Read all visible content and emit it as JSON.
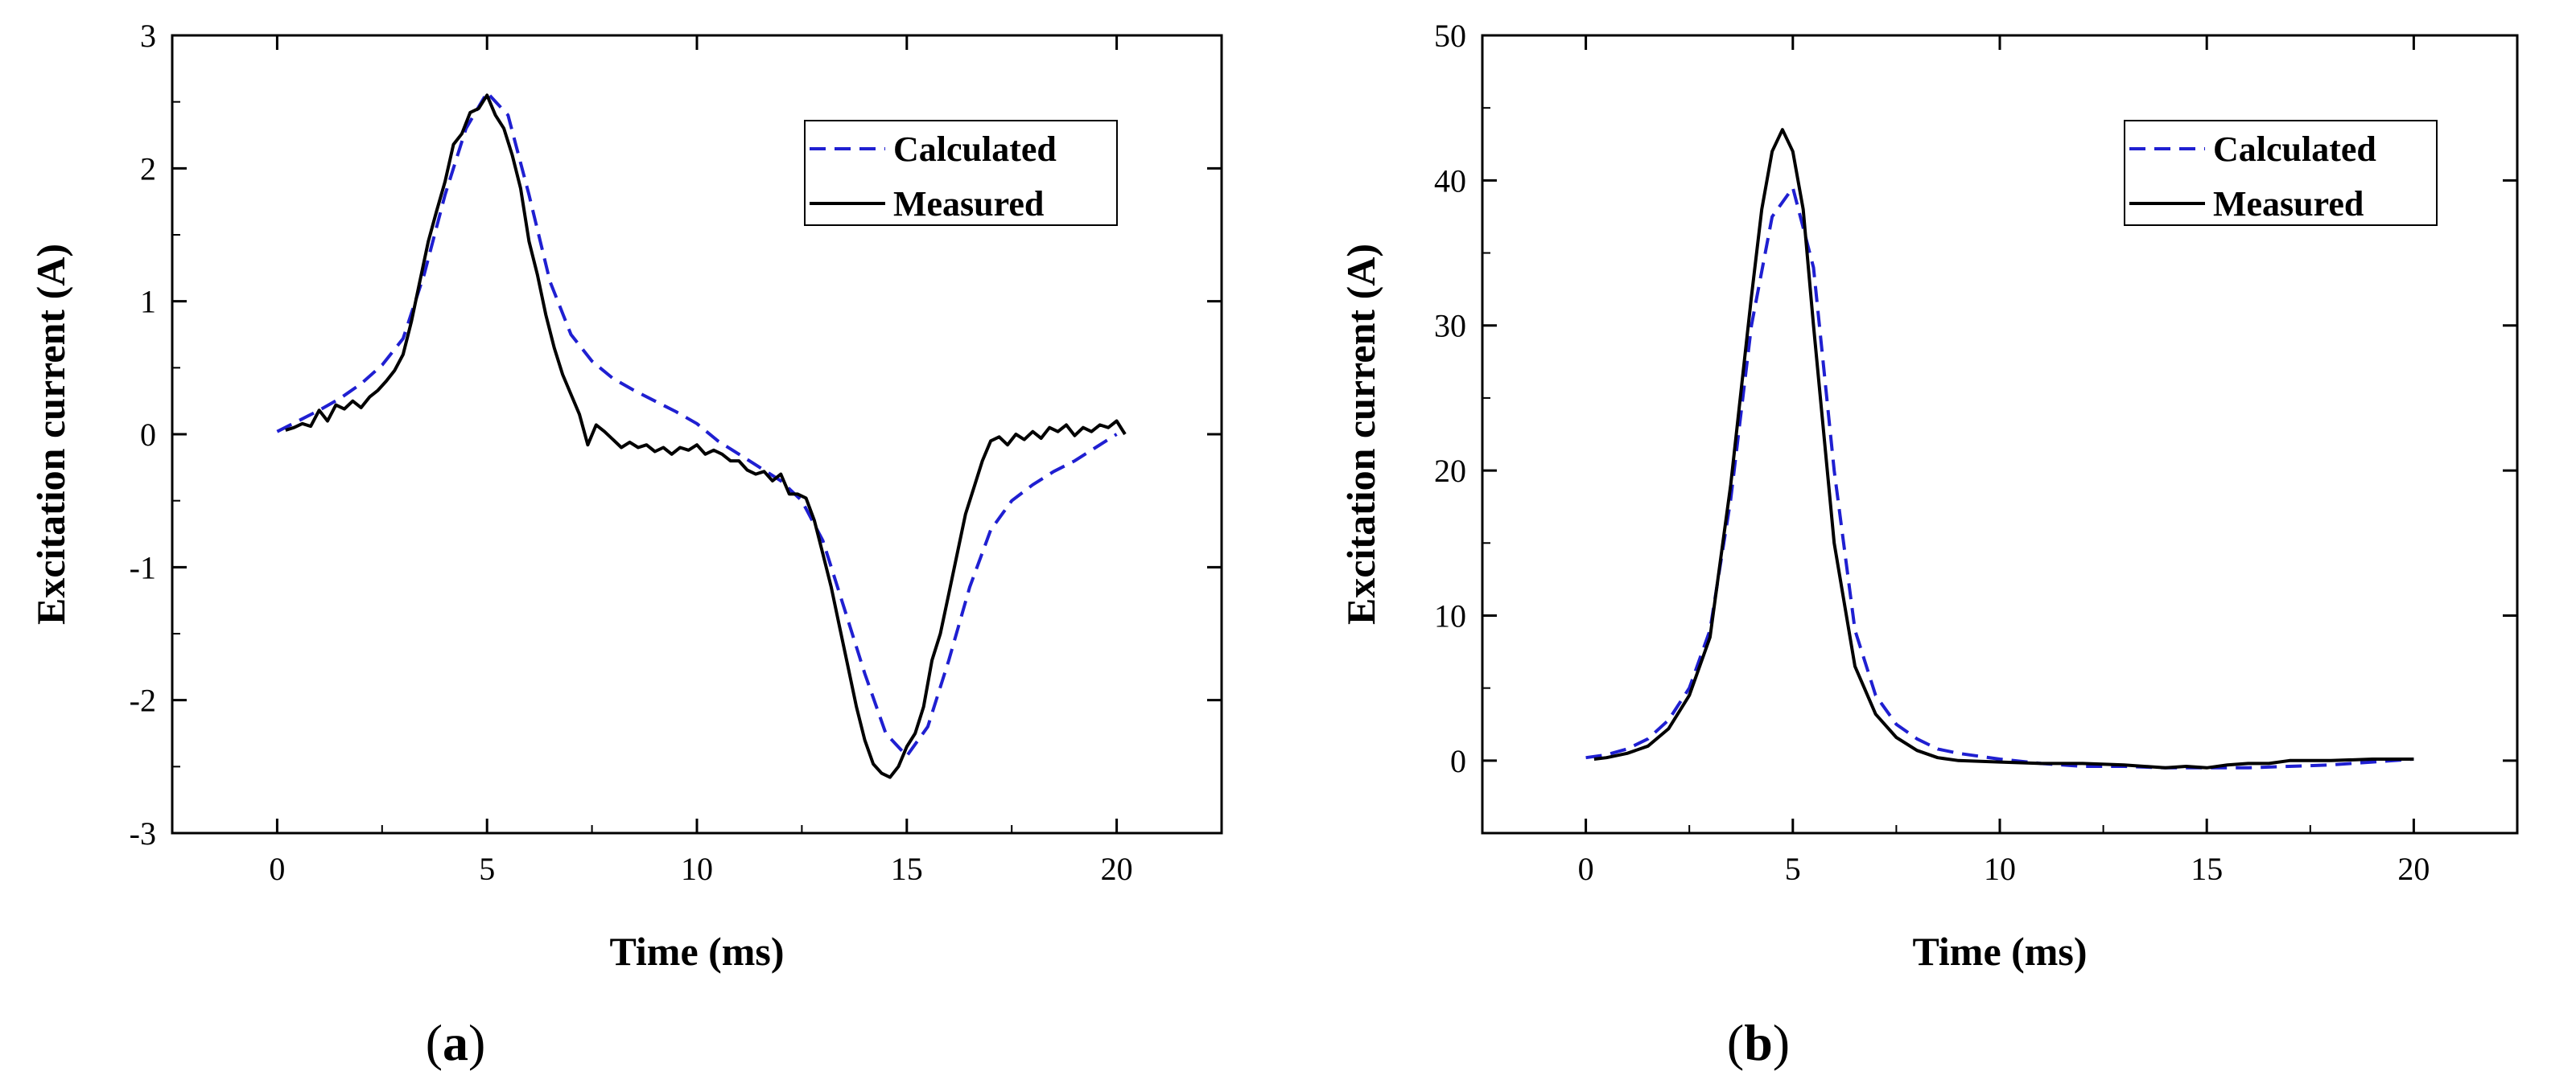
{
  "chart_data": [
    {
      "type": "line",
      "panel_label": "a",
      "xlabel": "Time (ms)",
      "ylabel": "Excitation current (A)",
      "xlim": [
        -2.5,
        22.5
      ],
      "ylim": [
        -3,
        3
      ],
      "xticks": [
        0,
        5,
        10,
        15,
        20
      ],
      "yticks": [
        -3,
        -2,
        -1,
        0,
        1,
        2,
        3
      ],
      "legend_position": "top-right",
      "series": [
        {
          "name": "Calculated",
          "color": "#1f1fd1",
          "style": "dashed",
          "x": [
            0,
            0.5,
            1,
            1.5,
            2,
            2.5,
            3,
            3.5,
            4,
            4.5,
            5,
            5.5,
            6,
            6.5,
            7,
            7.5,
            8,
            8.5,
            9,
            9.5,
            10,
            10.5,
            11,
            11.5,
            12,
            12.5,
            13,
            13.5,
            14,
            14.5,
            15,
            15.5,
            16,
            16.5,
            17,
            17.5,
            18,
            18.5,
            19,
            19.5,
            20
          ],
          "y": [
            0.02,
            0.1,
            0.18,
            0.27,
            0.38,
            0.52,
            0.72,
            1.2,
            1.8,
            2.3,
            2.57,
            2.4,
            1.8,
            1.15,
            0.75,
            0.55,
            0.42,
            0.33,
            0.25,
            0.17,
            0.08,
            -0.05,
            -0.15,
            -0.25,
            -0.35,
            -0.5,
            -0.8,
            -1.3,
            -1.8,
            -2.25,
            -2.42,
            -2.2,
            -1.7,
            -1.15,
            -0.72,
            -0.5,
            -0.38,
            -0.28,
            -0.2,
            -0.1,
            0.0
          ]
        },
        {
          "name": "Measured",
          "color": "#000000",
          "style": "solid",
          "x": [
            0.2,
            0.4,
            0.6,
            0.8,
            1.0,
            1.2,
            1.4,
            1.6,
            1.8,
            2.0,
            2.2,
            2.4,
            2.6,
            2.8,
            3.0,
            3.2,
            3.4,
            3.6,
            3.8,
            4.0,
            4.2,
            4.4,
            4.6,
            4.8,
            5.0,
            5.2,
            5.4,
            5.6,
            5.8,
            6.0,
            6.2,
            6.4,
            6.6,
            6.8,
            7.0,
            7.2,
            7.4,
            7.6,
            7.8,
            8.0,
            8.2,
            8.4,
            8.6,
            8.8,
            9.0,
            9.2,
            9.4,
            9.6,
            9.8,
            10.0,
            10.2,
            10.4,
            10.6,
            10.8,
            11.0,
            11.2,
            11.4,
            11.6,
            11.8,
            12.0,
            12.2,
            12.4,
            12.6,
            12.8,
            13.0,
            13.2,
            13.4,
            13.6,
            13.8,
            14.0,
            14.2,
            14.4,
            14.6,
            14.8,
            15.0,
            15.2,
            15.4,
            15.6,
            15.8,
            16.0,
            16.2,
            16.4,
            16.6,
            16.8,
            17.0,
            17.2,
            17.4,
            17.6,
            17.8,
            18.0,
            18.2,
            18.4,
            18.6,
            18.8,
            19.0,
            19.2,
            19.4,
            19.6,
            19.8,
            20.0,
            20.2
          ],
          "y": [
            0.03,
            0.05,
            0.08,
            0.06,
            0.18,
            0.1,
            0.22,
            0.19,
            0.25,
            0.2,
            0.28,
            0.33,
            0.4,
            0.48,
            0.6,
            0.85,
            1.15,
            1.45,
            1.68,
            1.9,
            2.18,
            2.26,
            2.42,
            2.45,
            2.55,
            2.4,
            2.3,
            2.1,
            1.85,
            1.45,
            1.2,
            0.9,
            0.65,
            0.45,
            0.3,
            0.15,
            -0.08,
            0.07,
            0.02,
            -0.04,
            -0.1,
            -0.06,
            -0.1,
            -0.08,
            -0.13,
            -0.1,
            -0.15,
            -0.1,
            -0.12,
            -0.08,
            -0.15,
            -0.12,
            -0.15,
            -0.2,
            -0.2,
            -0.27,
            -0.3,
            -0.28,
            -0.35,
            -0.3,
            -0.45,
            -0.45,
            -0.48,
            -0.65,
            -0.9,
            -1.15,
            -1.45,
            -1.75,
            -2.05,
            -2.3,
            -2.48,
            -2.55,
            -2.58,
            -2.5,
            -2.35,
            -2.25,
            -2.05,
            -1.7,
            -1.5,
            -1.2,
            -0.9,
            -0.6,
            -0.4,
            -0.2,
            -0.05,
            -0.02,
            -0.08,
            0.0,
            -0.04,
            0.02,
            -0.03,
            0.05,
            0.02,
            0.07,
            -0.01,
            0.05,
            0.02,
            0.07,
            0.05,
            0.1,
            0.0
          ]
        }
      ]
    },
    {
      "type": "line",
      "panel_label": "b",
      "xlabel": "Time (ms)",
      "ylabel": "Excitation current (A)",
      "xlim": [
        -2.5,
        22.5
      ],
      "ylim": [
        -5,
        50
      ],
      "xticks": [
        0,
        5,
        10,
        15,
        20
      ],
      "yticks": [
        0,
        10,
        20,
        30,
        40,
        50
      ],
      "legend_position": "top-right",
      "series": [
        {
          "name": "Calculated",
          "color": "#1f1fd1",
          "style": "dashed",
          "x": [
            0,
            0.5,
            1,
            1.5,
            2,
            2.5,
            3,
            3.5,
            4,
            4.5,
            5,
            5.5,
            6,
            6.5,
            7,
            7.5,
            8,
            8.5,
            9,
            10,
            11,
            12,
            13,
            14,
            15,
            16,
            17,
            18,
            19,
            20
          ],
          "y": [
            0.2,
            0.4,
            0.8,
            1.5,
            2.8,
            5.0,
            9.0,
            18.0,
            30.0,
            37.5,
            39.5,
            34.0,
            20.0,
            9.0,
            4.5,
            2.5,
            1.5,
            0.8,
            0.5,
            0.1,
            -0.2,
            -0.4,
            -0.4,
            -0.5,
            -0.5,
            -0.5,
            -0.4,
            -0.3,
            -0.1,
            0.1
          ]
        },
        {
          "name": "Measured",
          "color": "#000000",
          "style": "solid",
          "x": [
            0.2,
            0.5,
            1.0,
            1.5,
            2.0,
            2.5,
            3.0,
            3.5,
            4.0,
            4.25,
            4.5,
            4.75,
            5.0,
            5.25,
            5.5,
            6.0,
            6.5,
            7.0,
            7.5,
            8.0,
            8.5,
            9.0,
            10.0,
            11.0,
            12.0,
            13.0,
            14.0,
            14.5,
            15.0,
            15.5,
            16.0,
            16.5,
            17.0,
            18.0,
            19.0,
            20.0
          ],
          "y": [
            0.1,
            0.2,
            0.5,
            1.0,
            2.2,
            4.5,
            8.5,
            19.0,
            32.0,
            38.0,
            42.0,
            43.5,
            42.0,
            38.0,
            30.0,
            15.0,
            6.5,
            3.2,
            1.6,
            0.7,
            0.2,
            0.0,
            -0.1,
            -0.2,
            -0.2,
            -0.3,
            -0.5,
            -0.4,
            -0.5,
            -0.3,
            -0.2,
            -0.2,
            0.0,
            0.0,
            0.1,
            0.1
          ]
        }
      ]
    }
  ]
}
